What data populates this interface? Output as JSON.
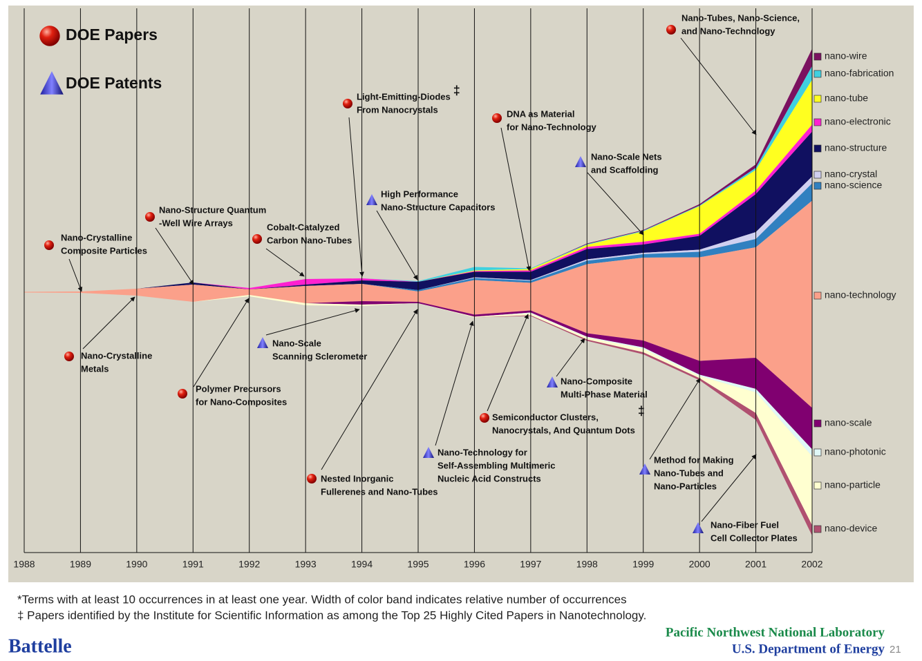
{
  "chart_data": {
    "type": "streamgraph",
    "legend": [
      {
        "name": "DOE Papers",
        "marker": "paper"
      },
      {
        "name": "DOE Patents",
        "marker": "patent"
      }
    ],
    "x": [
      1988,
      1989,
      1990,
      1991,
      1992,
      1993,
      1994,
      1995,
      1996,
      1997,
      1998,
      1999,
      2000,
      2001,
      2002
    ],
    "xlim": [
      1988,
      2002
    ],
    "xticks": [
      1988,
      1989,
      1990,
      1991,
      1992,
      1993,
      1994,
      1995,
      1996,
      1997,
      1998,
      1999,
      2000,
      2001,
      2002
    ],
    "series": [
      {
        "name": "nano-wire",
        "color": "#7b1160",
        "values": [
          0,
          0,
          0,
          0,
          0,
          0,
          0,
          0,
          0,
          0,
          1,
          1,
          2,
          5,
          25
        ]
      },
      {
        "name": "nano-fabrication",
        "color": "#40d0e0",
        "values": [
          0,
          0,
          0,
          0,
          0,
          0,
          0,
          1,
          5,
          1,
          1,
          1,
          1,
          3,
          20
        ]
      },
      {
        "name": "nano-tube",
        "color": "#ffff20",
        "values": [
          0,
          0,
          0,
          0,
          0,
          0,
          0,
          0,
          1,
          2,
          3,
          15,
          40,
          30,
          65
        ]
      },
      {
        "name": "nano-electronic",
        "color": "#ff20d0",
        "values": [
          0,
          0,
          0,
          0,
          2,
          8,
          3,
          0,
          1,
          2,
          3,
          4,
          3,
          5,
          10
        ]
      },
      {
        "name": "nano-structure",
        "color": "#101060",
        "values": [
          0,
          0,
          0,
          3,
          0,
          2,
          5,
          12,
          8,
          12,
          15,
          12,
          20,
          55,
          65
        ]
      },
      {
        "name": "nano-crystal",
        "color": "#d0d0f0",
        "values": [
          0,
          0,
          0,
          0,
          0,
          0,
          0,
          0,
          1,
          1,
          2,
          2,
          3,
          10,
          10
        ]
      },
      {
        "name": "nano-science",
        "color": "#3080c0",
        "values": [
          0,
          0,
          0,
          0,
          0,
          0,
          0,
          2,
          3,
          3,
          5,
          5,
          8,
          12,
          25
        ]
      },
      {
        "name": "nano-technology",
        "color": "#fba08a",
        "values": [
          1,
          2,
          10,
          25,
          8,
          25,
          25,
          15,
          50,
          40,
          100,
          120,
          150,
          160,
          300
        ]
      },
      {
        "name": "nano-scale",
        "color": "#800070",
        "values": [
          0,
          0,
          0,
          0,
          0,
          0,
          5,
          2,
          3,
          3,
          5,
          10,
          20,
          45,
          60
        ]
      },
      {
        "name": "nano-photonic",
        "color": "#e0f8f8",
        "values": [
          0,
          0,
          0,
          0,
          0,
          0,
          0,
          0,
          0,
          1,
          1,
          2,
          2,
          5,
          10
        ]
      },
      {
        "name": "nano-particle",
        "color": "#ffffd0",
        "values": [
          0,
          0,
          0,
          0,
          2,
          3,
          2,
          0,
          1,
          3,
          3,
          5,
          3,
          30,
          100
        ]
      },
      {
        "name": "nano-device",
        "color": "#b05070",
        "values": [
          0,
          0,
          0,
          0,
          0,
          0,
          0,
          0,
          0,
          1,
          2,
          3,
          3,
          10,
          15
        ]
      }
    ],
    "annotations": [
      {
        "marker": "paper",
        "lines": [
          "Nano-Crystalline",
          "Composite Particles"
        ]
      },
      {
        "marker": "paper",
        "lines": [
          "Nano-Structure Quantum",
          "-Well Wire Arrays"
        ]
      },
      {
        "marker": "paper",
        "lines": [
          "Cobalt-Catalyzed",
          "Carbon Nano-Tubes"
        ]
      },
      {
        "marker": "paper",
        "lines": [
          "Light-Emitting-Diodes",
          "From Nanocrystals"
        ],
        "mark": "‡"
      },
      {
        "marker": "patent",
        "lines": [
          "High Performance",
          "Nano-Structure Capacitors"
        ]
      },
      {
        "marker": "paper",
        "lines": [
          "DNA as Material",
          "for Nano-Technology"
        ]
      },
      {
        "marker": "patent",
        "lines": [
          "Nano-Scale Nets",
          "and Scaffolding"
        ]
      },
      {
        "marker": "paper",
        "lines": [
          "Nano-Tubes, Nano-Science,",
          "and Nano-Technology"
        ]
      },
      {
        "marker": "paper",
        "lines": [
          "Nano-Crystalline",
          "Metals"
        ]
      },
      {
        "marker": "paper",
        "lines": [
          "Polymer Precursors",
          "for Nano-Composites"
        ]
      },
      {
        "marker": "patent",
        "lines": [
          "Nano-Scale",
          "Scanning Sclerometer"
        ]
      },
      {
        "marker": "paper",
        "lines": [
          "Nested Inorganic",
          "Fullerenes and Nano-Tubes"
        ]
      },
      {
        "marker": "patent",
        "lines": [
          "Nano-Technology for",
          "Self-Assembling Multimeric",
          "Nucleic Acid Constructs"
        ]
      },
      {
        "marker": "paper",
        "lines": [
          "Semiconductor Clusters,",
          "Nanocrystals, And Quantum Dots"
        ],
        "mark": "‡"
      },
      {
        "marker": "patent",
        "lines": [
          "Nano-Composite",
          "Multi-Phase Material"
        ]
      },
      {
        "marker": "patent",
        "lines": [
          "Method for Making",
          "Nano-Tubes and",
          "Nano-Particles"
        ]
      },
      {
        "marker": "patent",
        "lines": [
          "Nano-Fiber Fuel",
          "Cell Collector Plates"
        ]
      }
    ]
  },
  "footnotes": [
    "*Terms with at least 10 occurrences in at least one year.  Width of color band indicates relative number of occurrences",
    "‡ Papers identified by the Institute for Scientific Information as among the Top 25 Highly Cited Papers in Nanotechnology."
  ],
  "footer": {
    "logo": "Battelle",
    "lab": "Pacific Northwest National Laboratory",
    "department": "U.S. Department of Energy",
    "page": "21"
  }
}
